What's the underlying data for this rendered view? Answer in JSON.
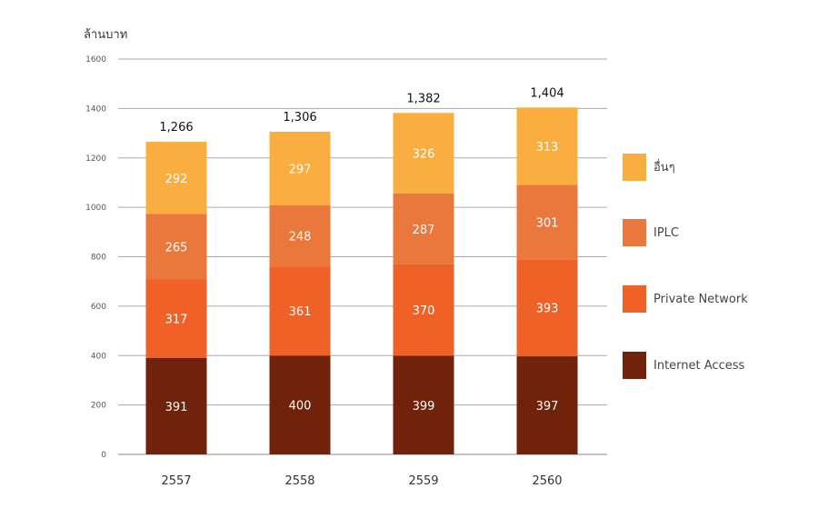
{
  "chart_data": {
    "type": "bar",
    "stacked": true,
    "ylabel": "ล้านบาท",
    "ylim": [
      0,
      1600
    ],
    "yticks": [
      0,
      200,
      400,
      600,
      800,
      1000,
      1200,
      1400,
      1600
    ],
    "grid": true,
    "legend_position": "right",
    "categories": [
      "2557",
      "2558",
      "2559",
      "2560"
    ],
    "totals": [
      "1,266",
      "1,306",
      "1,382",
      "1,404"
    ],
    "series": [
      {
        "name": "Internet Access",
        "color": "#70230a",
        "values": [
          391,
          400,
          399,
          397
        ]
      },
      {
        "name": "Private Network",
        "color": "#ef6127",
        "values": [
          317,
          361,
          370,
          393
        ]
      },
      {
        "name": "IPLC",
        "color": "#ea783d",
        "values": [
          265,
          248,
          287,
          301
        ]
      },
      {
        "name": "อื่นๆ",
        "color": "#fbae40",
        "values": [
          292,
          297,
          326,
          313
        ]
      }
    ]
  }
}
